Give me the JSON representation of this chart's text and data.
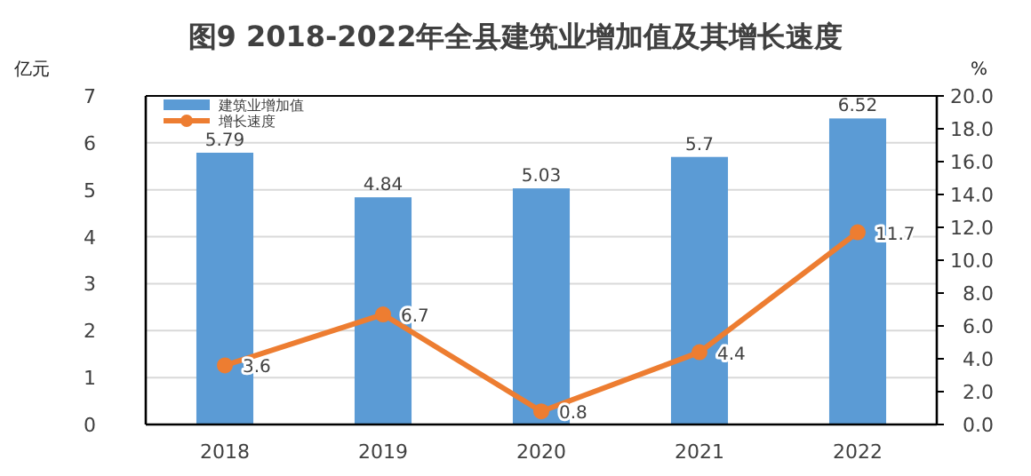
{
  "chart_data": {
    "type": "bar",
    "title": "图9 2018-2022年全县建筑业增加值及其增长速度",
    "ylabel": "亿元",
    "y2label": "%",
    "categories": [
      "2018",
      "2019",
      "2020",
      "2021",
      "2022"
    ],
    "series": [
      {
        "name": "建筑业增加值",
        "color": "#5b9bd5",
        "values": [
          5.79,
          4.84,
          5.03,
          5.7,
          6.52
        ]
      },
      {
        "name": "增长速度",
        "type": "line",
        "axis": "y2",
        "color": "#ed7d31",
        "values": [
          3.6,
          6.7,
          0.8,
          4.4,
          11.7
        ]
      }
    ],
    "ylim": [
      0,
      7
    ],
    "yticks": [
      0,
      1,
      2,
      3,
      4,
      5,
      6,
      7
    ],
    "y2lim": [
      0,
      20
    ],
    "y2ticks": [
      {
        "value": 0,
        "label": "0.0"
      },
      {
        "value": 2,
        "label": "2.0"
      },
      {
        "value": 4,
        "label": "4.0"
      },
      {
        "value": 6,
        "label": "6.0"
      },
      {
        "value": 8,
        "label": "8.0"
      },
      {
        "value": 10,
        "label": "10.0"
      },
      {
        "value": 12,
        "label": "12.0"
      },
      {
        "value": 14,
        "label": "14.0"
      },
      {
        "value": 16,
        "label": "16.0"
      },
      {
        "value": 18,
        "label": "18.0"
      },
      {
        "value": 20,
        "label": "20.0"
      }
    ],
    "data_labels": true,
    "grid": "y",
    "legend": "top left",
    "marker": "circle",
    "line_style": "solid"
  }
}
